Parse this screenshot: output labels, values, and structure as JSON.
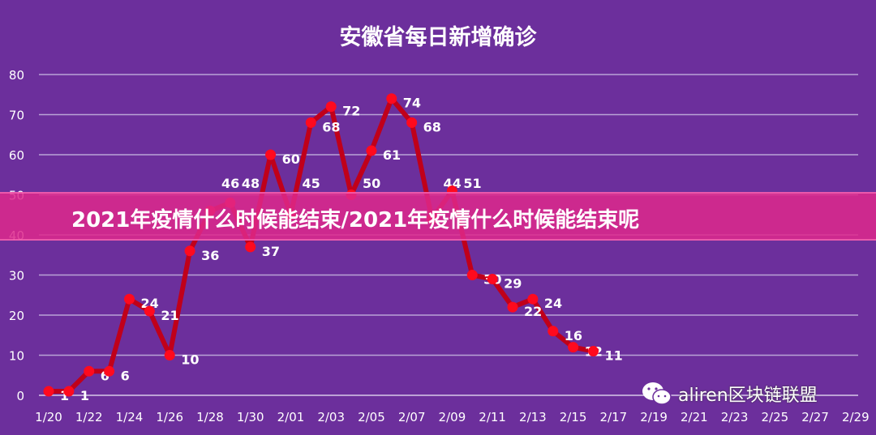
{
  "chart_data": {
    "type": "line",
    "title": "安徽省每日新增确诊",
    "xlabel": "",
    "ylabel": "",
    "ylim": [
      0,
      80
    ],
    "yticks": [
      0,
      10,
      20,
      30,
      40,
      50,
      60,
      70,
      80
    ],
    "grid": true,
    "xtick_labels": [
      "1/20",
      "1/22",
      "1/24",
      "1/26",
      "1/28",
      "1/30",
      "2/01",
      "2/03",
      "2/05",
      "2/07",
      "2/09",
      "2/11",
      "2/13",
      "2/15",
      "2/17",
      "2/19",
      "2/21",
      "2/23",
      "2/25",
      "2/27",
      "2/29"
    ],
    "x": [
      "1/20",
      "1/21",
      "1/22",
      "1/23",
      "1/24",
      "1/25",
      "1/26",
      "1/27",
      "1/28",
      "1/29",
      "1/30",
      "1/31",
      "2/01",
      "2/02",
      "2/03",
      "2/04",
      "2/05",
      "2/06",
      "2/07",
      "2/08",
      "2/09",
      "2/10",
      "2/11",
      "2/12",
      "2/13",
      "2/14",
      "2/15",
      "2/16"
    ],
    "values": [
      1,
      1,
      6,
      6,
      24,
      21,
      10,
      36,
      46,
      48,
      37,
      60,
      45,
      68,
      72,
      50,
      61,
      74,
      68,
      44,
      51,
      30,
      29,
      22,
      24,
      16,
      12,
      11
    ],
    "line_color": "#c0001a",
    "marker_color": "#ff0a1e"
  },
  "banner": {
    "text": "2021年疫情什么时候能结束/2021年疫情什么时候能结束呢"
  },
  "watermark": {
    "text": "aliren区块链联盟",
    "icon": "wechat-icon"
  }
}
